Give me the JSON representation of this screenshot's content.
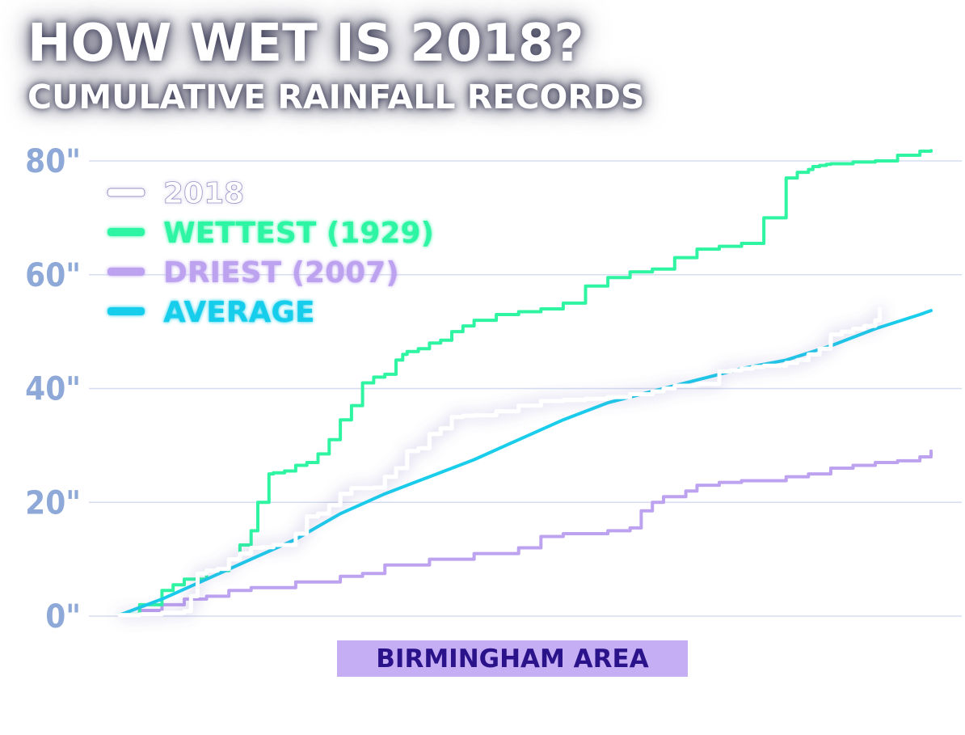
{
  "title": "HOW WET IS 2018?",
  "subtitle": "CUMULATIVE RAINFALL RECORDS",
  "caption": "BIRMINGHAM AREA",
  "colors": {
    "2018": "#ffffff",
    "wettest": "#2ff5a3",
    "driest": "#bda2f0",
    "average": "#19cdeb",
    "tick_label": "#8ea8d8",
    "grid": "#d6ddf0",
    "caption_bg": "#c6aef5",
    "caption_text": "#2a138a"
  },
  "chart_data": {
    "type": "line",
    "title": "HOW WET IS 2018?",
    "subtitle": "CUMULATIVE RAINFALL RECORDS",
    "xlabel": "",
    "ylabel": "",
    "x_unit": "day of year",
    "xlim": [
      1,
      365
    ],
    "ylim": [
      0,
      80
    ],
    "y_ticks": [
      0,
      20,
      40,
      60,
      80
    ],
    "y_tick_labels": [
      "0\"",
      "20\"",
      "40\"",
      "60\"",
      "80\""
    ],
    "grid": true,
    "legend_position": "top-left",
    "series": [
      {
        "name": "2018",
        "color_key": "2018",
        "x": [
          1,
          10,
          20,
          30,
          33,
          36,
          40,
          45,
          50,
          55,
          60,
          65,
          70,
          80,
          85,
          90,
          95,
          100,
          105,
          110,
          115,
          120,
          125,
          130,
          135,
          140,
          145,
          150,
          155,
          160,
          170,
          180,
          190,
          200,
          210,
          220,
          230,
          240,
          245,
          250,
          260,
          270,
          275,
          280,
          285,
          290,
          300,
          305,
          310,
          315,
          320,
          325,
          330,
          335,
          340,
          342
        ],
        "y": [
          0.2,
          0.3,
          0.6,
          0.9,
          3.5,
          7.5,
          8.0,
          8.3,
          10.0,
          11.0,
          12.0,
          12.1,
          12.5,
          14.5,
          17.5,
          18.0,
          19.5,
          21.5,
          22.5,
          22.5,
          22.6,
          24.5,
          26.0,
          29.0,
          29.5,
          32.0,
          33.0,
          35.0,
          35.2,
          35.3,
          36.0,
          37.0,
          37.8,
          38.0,
          38.2,
          38.5,
          39.0,
          39.5,
          40.0,
          40.5,
          40.8,
          43.0,
          43.2,
          43.5,
          43.8,
          44.0,
          44.5,
          45.0,
          46.0,
          47.0,
          49.5,
          50.0,
          50.5,
          51.0,
          52.0,
          54.0
        ]
      },
      {
        "name": "WETTEST (1929)",
        "color_key": "wettest",
        "x": [
          1,
          10,
          20,
          25,
          30,
          40,
          50,
          55,
          60,
          63,
          68,
          70,
          75,
          80,
          85,
          90,
          95,
          100,
          105,
          110,
          115,
          120,
          125,
          128,
          130,
          135,
          140,
          145,
          150,
          155,
          160,
          170,
          180,
          190,
          200,
          210,
          220,
          230,
          240,
          250,
          260,
          270,
          280,
          290,
          300,
          305,
          310,
          312,
          315,
          318,
          320,
          330,
          340,
          350,
          360,
          365
        ],
        "y": [
          0.3,
          2.0,
          4.5,
          5.5,
          6.5,
          8.0,
          10.0,
          12.5,
          15.0,
          20.0,
          25.0,
          25.2,
          25.5,
          26.5,
          27.0,
          28.5,
          31.0,
          34.5,
          37.0,
          41.0,
          42.0,
          42.5,
          45.0,
          46.0,
          46.5,
          47.0,
          48.0,
          48.5,
          50.0,
          51.0,
          52.0,
          53.0,
          53.5,
          54.0,
          55.0,
          58.0,
          59.5,
          60.5,
          61.0,
          63.0,
          64.5,
          65.0,
          65.5,
          70.0,
          77.0,
          78.0,
          78.5,
          79.0,
          79.2,
          79.4,
          79.5,
          79.8,
          80.0,
          81.0,
          81.7,
          81.8
        ]
      },
      {
        "name": "DRIEST (2007)",
        "color_key": "driest",
        "x": [
          1,
          10,
          20,
          30,
          40,
          50,
          60,
          80,
          100,
          110,
          120,
          140,
          160,
          180,
          190,
          200,
          220,
          230,
          235,
          240,
          245,
          255,
          260,
          270,
          280,
          300,
          310,
          320,
          330,
          340,
          350,
          360,
          365
        ],
        "y": [
          0.2,
          1.0,
          2.0,
          3.0,
          3.5,
          4.5,
          5.0,
          6.0,
          7.0,
          7.5,
          9.0,
          10.0,
          11.0,
          12.0,
          14.0,
          14.5,
          15.0,
          15.5,
          18.5,
          20.0,
          21.0,
          22.0,
          23.0,
          23.5,
          23.8,
          24.5,
          25.0,
          26.0,
          26.5,
          27.0,
          27.3,
          28.0,
          29.0
        ]
      },
      {
        "name": "AVERAGE",
        "color_key": "average",
        "x": [
          1,
          20,
          40,
          60,
          80,
          100,
          120,
          140,
          160,
          180,
          200,
          220,
          240,
          260,
          280,
          300,
          320,
          340,
          360,
          365
        ],
        "y": [
          0.2,
          3.0,
          6.5,
          10.0,
          13.5,
          18.0,
          21.5,
          24.5,
          27.5,
          31.0,
          34.5,
          37.5,
          39.5,
          41.5,
          43.5,
          45.0,
          47.5,
          50.5,
          53.0,
          53.7
        ]
      }
    ]
  }
}
